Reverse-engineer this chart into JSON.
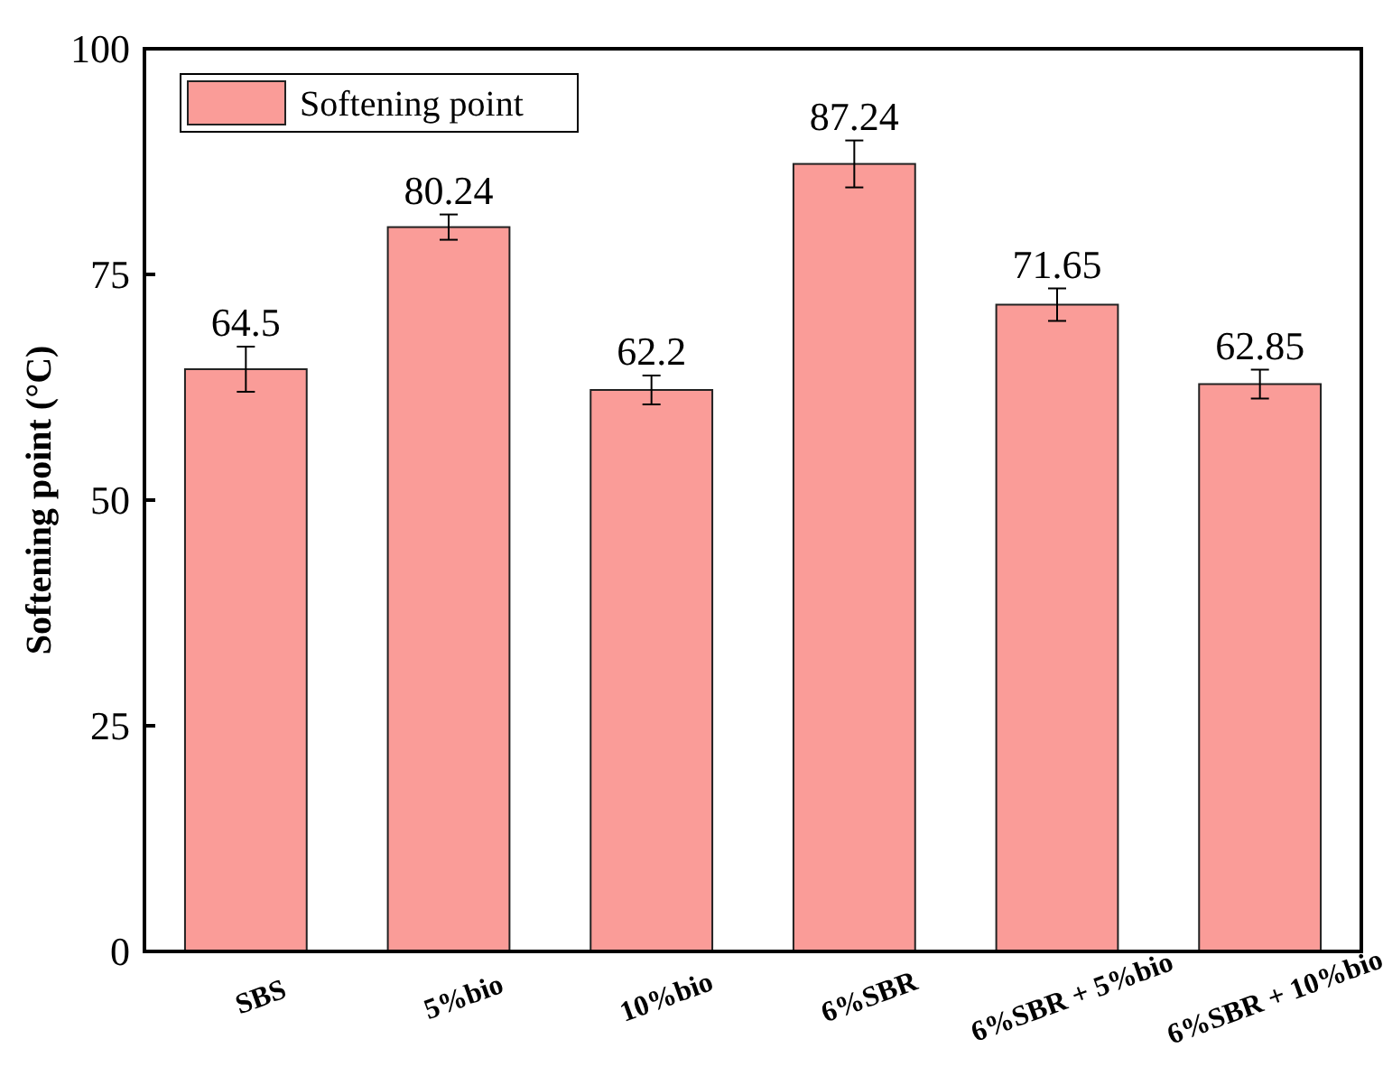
{
  "chart_data": {
    "type": "bar",
    "ylabel": "Softening point (°C)",
    "categories": [
      "SBS",
      "5%bio",
      "10%bio",
      "6%SBR",
      "6%SBR + 5%bio",
      "6%SBR + 10%bio"
    ],
    "series": [
      {
        "name": "Softening point",
        "color": "#fa9c98",
        "values": [
          64.5,
          80.24,
          62.2,
          87.24,
          71.65,
          62.85
        ],
        "errors": [
          2.5,
          1.4,
          1.6,
          2.6,
          1.8,
          1.6
        ]
      }
    ],
    "data_labels": true,
    "ylim": [
      0,
      100
    ],
    "yticks": [
      0,
      25,
      50,
      75,
      100
    ],
    "legend": "top left",
    "grid": false
  }
}
